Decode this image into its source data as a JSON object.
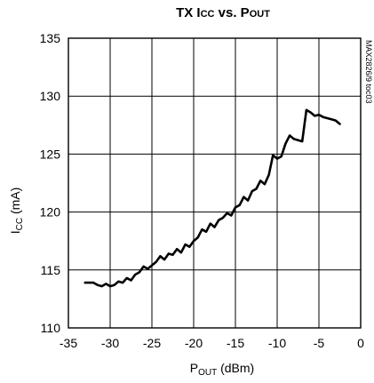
{
  "chart_data": {
    "type": "line",
    "title": "TX ICC vs. POUT",
    "title_parts": {
      "prefix": "TX I",
      "icc_sub": "CC",
      "middle": " vs. P",
      "pout_sub": "OUT"
    },
    "xlabel": "POUT (dBm)",
    "xlabel_parts": {
      "main": "P",
      "sub": "OUT",
      "rest": " (dBm)"
    },
    "ylabel": "ICC (mA)",
    "ylabel_parts": {
      "main": "I",
      "sub": "CC",
      "rest": " (mA)"
    },
    "side_label": "MAX2826/9 toc03",
    "xlim": [
      -35,
      0
    ],
    "ylim": [
      110,
      135
    ],
    "xticks": [
      -35,
      -30,
      -25,
      -20,
      -15,
      -10,
      -5,
      0
    ],
    "yticks": [
      110,
      115,
      120,
      125,
      130,
      135
    ],
    "xtick_labels": [
      "-35",
      "-30",
      "-25",
      "-20",
      "-15",
      "-10",
      "-5",
      "0"
    ],
    "ytick_labels": [
      "110",
      "115",
      "120",
      "125",
      "130",
      "135"
    ],
    "grid": true,
    "series": [
      {
        "color": "#000000",
        "x": [
          -33.0,
          -32.5,
          -32.0,
          -31.5,
          -31.0,
          -30.5,
          -30.0,
          -29.5,
          -29.0,
          -28.5,
          -28.0,
          -27.5,
          -27.0,
          -26.5,
          -26.0,
          -25.5,
          -25.0,
          -24.5,
          -24.0,
          -23.5,
          -23.0,
          -22.5,
          -22.0,
          -21.5,
          -21.0,
          -20.5,
          -20.0,
          -19.5,
          -19.0,
          -18.5,
          -18.0,
          -17.5,
          -17.0,
          -16.5,
          -16.0,
          -15.5,
          -15.0,
          -14.5,
          -14.0,
          -13.5,
          -13.0,
          -12.5,
          -12.0,
          -11.5,
          -11.0,
          -10.5,
          -10.0,
          -9.5,
          -9.0,
          -8.5,
          -8.0,
          -7.5,
          -7.0,
          -6.5,
          -6.0,
          -5.5,
          -5.0,
          -4.5,
          -4.0,
          -3.5,
          -3.0,
          -2.5
        ],
        "y": [
          113.9,
          113.9,
          113.9,
          113.7,
          113.6,
          113.8,
          113.6,
          113.7,
          114.0,
          113.9,
          114.3,
          114.1,
          114.6,
          114.8,
          115.3,
          115.1,
          115.4,
          115.7,
          116.2,
          115.9,
          116.4,
          116.3,
          116.8,
          116.5,
          117.2,
          117.0,
          117.5,
          117.8,
          118.5,
          118.3,
          119.0,
          118.7,
          119.3,
          119.5,
          119.9,
          119.7,
          120.4,
          120.6,
          121.3,
          121.0,
          121.8,
          122.0,
          122.7,
          122.4,
          123.2,
          124.9,
          124.6,
          124.8,
          125.9,
          126.6,
          126.3,
          126.2,
          126.1,
          128.8,
          128.6,
          128.3,
          128.4,
          128.2,
          128.1,
          128.0,
          127.9,
          127.6
        ]
      }
    ]
  }
}
